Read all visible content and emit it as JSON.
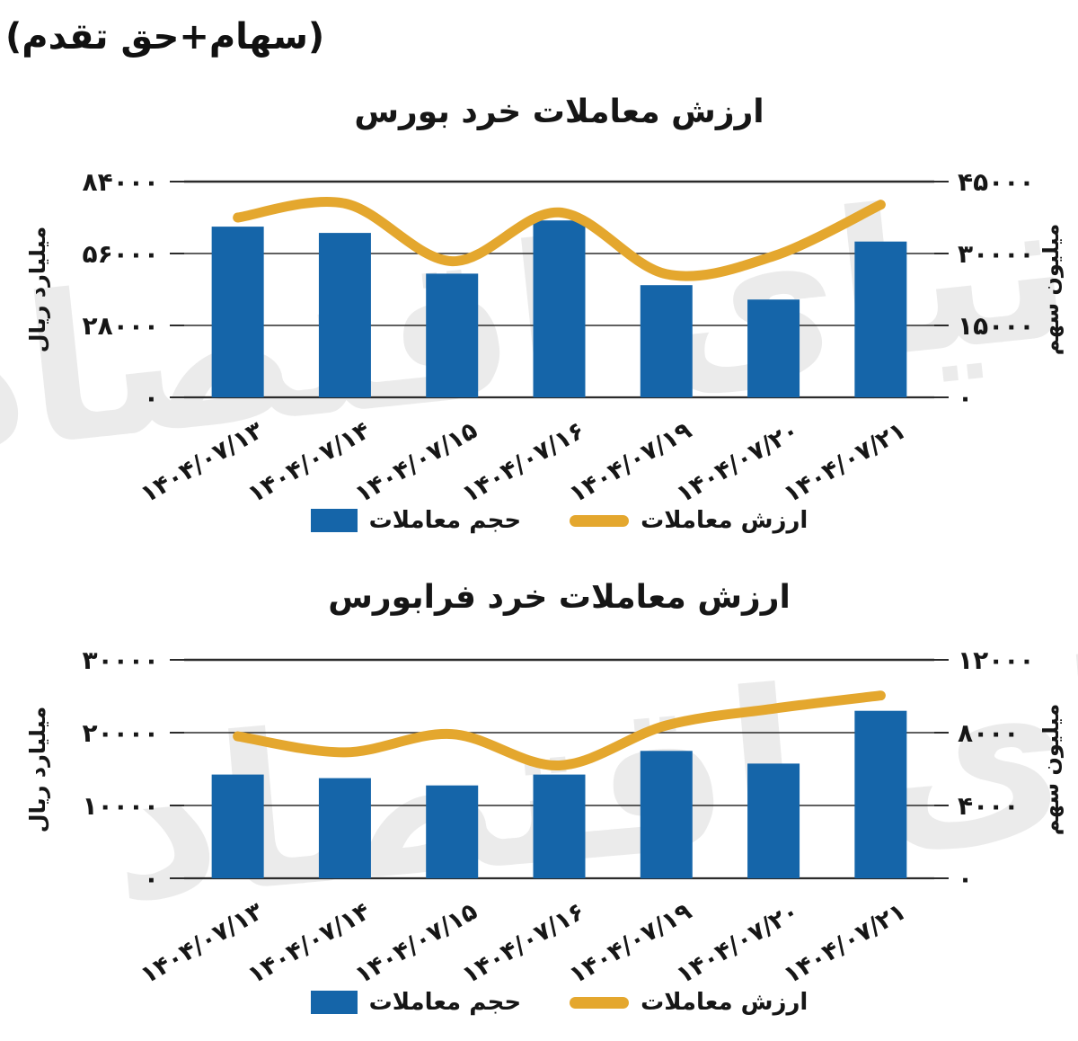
{
  "header": {
    "note": "(سهام+حق تقدم)"
  },
  "watermark": "دنیای اقتصاد",
  "colors": {
    "bar": "#1565A9",
    "line": "#E4A72E",
    "grid": "#2b2b2b",
    "text": "#161616",
    "watermark": "#ebebeb"
  },
  "legend": {
    "volume_label": "حجم معاملات",
    "value_label": "ارزش معاملات"
  },
  "chart_data": [
    {
      "type": "bar",
      "subtype": "combo-bar-line",
      "title": "ارزش معاملات خرد بورس",
      "categories": [
        "۱۴۰۴/۰۷/۱۳",
        "۱۴۰۴/۰۷/۱۴",
        "۱۴۰۴/۰۷/۱۵",
        "۱۴۰۴/۰۷/۱۶",
        "۱۴۰۴/۰۷/۱۹",
        "۱۴۰۴/۰۷/۲۰",
        "۱۴۰۴/۰۷/۲۱"
      ],
      "series": [
        {
          "name": "حجم معاملات",
          "type": "bar",
          "axis": "right",
          "values": [
            35600,
            34300,
            25800,
            36900,
            23400,
            20400,
            32500
          ]
        },
        {
          "name": "ارزش معاملات",
          "type": "line",
          "axis": "left",
          "values": [
            70000,
            75500,
            53000,
            72000,
            48000,
            55000,
            75000
          ]
        }
      ],
      "left_axis": {
        "label": "میلیارد ریال",
        "max": 84000,
        "ticks": [
          0,
          28000,
          56000,
          84000
        ],
        "tick_labels": [
          "۰",
          "۲۸۰۰۰",
          "۵۶۰۰۰",
          "۸۴۰۰۰"
        ]
      },
      "right_axis": {
        "label": "میلیون سهم",
        "max": 45000,
        "ticks": [
          0,
          15000,
          30000,
          45000
        ],
        "tick_labels": [
          "۰",
          "۱۵۰۰۰",
          "۳۰۰۰۰",
          "۴۵۰۰۰"
        ]
      },
      "grid": true,
      "legend_position": "bottom"
    },
    {
      "type": "bar",
      "subtype": "combo-bar-line",
      "title": "ارزش معاملات خرد فرابورس",
      "categories": [
        "۱۴۰۴/۰۷/۱۳",
        "۱۴۰۴/۰۷/۱۴",
        "۱۴۰۴/۰۷/۱۵",
        "۱۴۰۴/۰۷/۱۶",
        "۱۴۰۴/۰۷/۱۹",
        "۱۴۰۴/۰۷/۲۰",
        "۱۴۰۴/۰۷/۲۱"
      ],
      "series": [
        {
          "name": "حجم معاملات",
          "type": "bar",
          "axis": "right",
          "values": [
            5700,
            5500,
            5100,
            5700,
            7000,
            6300,
            9200
          ]
        },
        {
          "name": "ارزش معاملات",
          "type": "line",
          "axis": "left",
          "values": [
            19500,
            17300,
            19800,
            15500,
            21000,
            23300,
            25100
          ]
        }
      ],
      "left_axis": {
        "label": "میلیارد ریال",
        "max": 30000,
        "ticks": [
          0,
          10000,
          20000,
          30000
        ],
        "tick_labels": [
          "۰",
          "۱۰۰۰۰",
          "۲۰۰۰۰",
          "۳۰۰۰۰"
        ]
      },
      "right_axis": {
        "label": "میلیون سهم",
        "max": 12000,
        "ticks": [
          0,
          4000,
          8000,
          12000
        ],
        "tick_labels": [
          "۰",
          "۴۰۰۰",
          "۸۰۰۰",
          "۱۲۰۰۰"
        ]
      },
      "grid": true,
      "legend_position": "bottom"
    }
  ]
}
